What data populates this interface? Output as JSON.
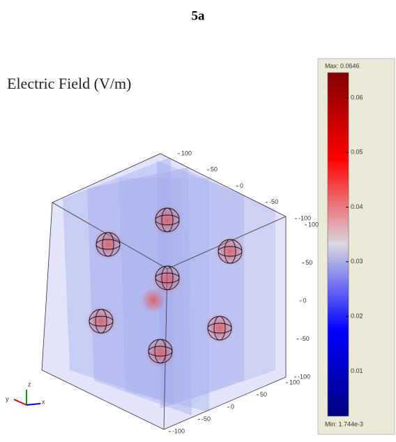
{
  "figure_label": "5a",
  "title": "Electric Field (V/m)",
  "colorbar": {
    "max_label": "Max: 0.0646",
    "min_label": "Min: 1.744e-3",
    "range": [
      0.001744,
      0.0646
    ],
    "ticks": [
      0.01,
      0.02,
      0.03,
      0.04,
      0.05,
      0.06
    ]
  },
  "axes": [
    {
      "ticks": [
        100,
        50,
        0,
        -50,
        -100
      ]
    },
    {
      "ticks": [
        100,
        50,
        0,
        -50,
        -100
      ]
    },
    {
      "ticks": [
        100,
        50,
        0,
        -50,
        -100
      ]
    }
  ],
  "triad": {
    "z": "z",
    "y": "y",
    "x": "x"
  }
}
